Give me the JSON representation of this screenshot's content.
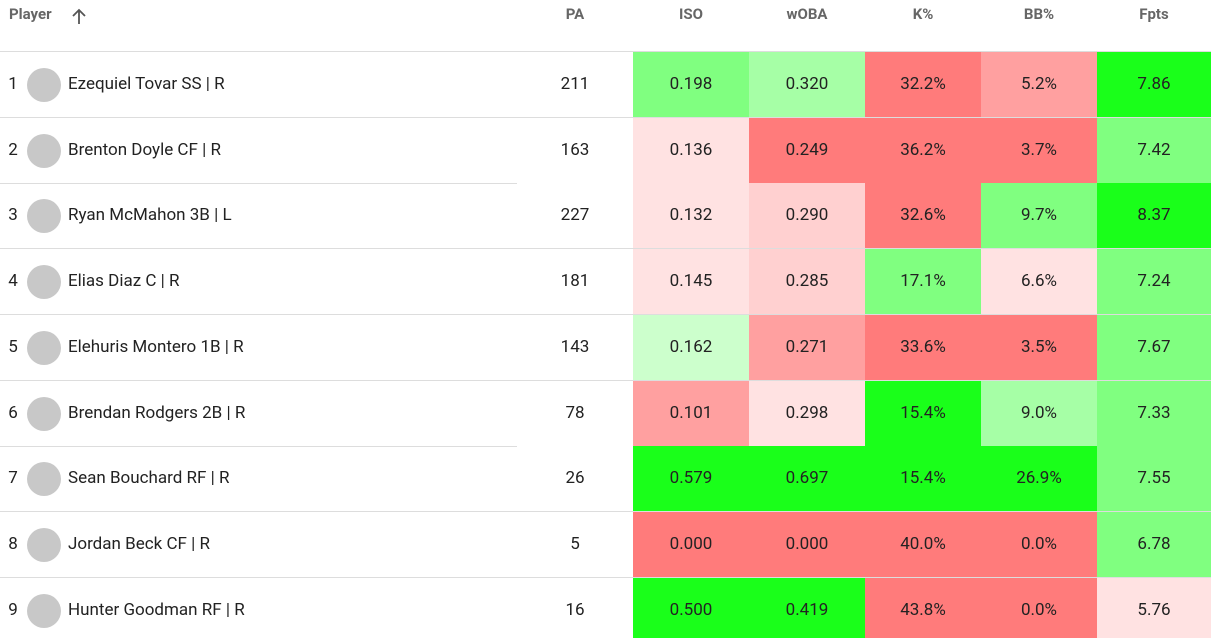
{
  "table": {
    "headers": [
      "Player",
      "PA",
      "ISO",
      "wOBA",
      "K%",
      "BB%",
      "Fpts"
    ],
    "rows": [
      {
        "rank": "1",
        "player": "Ezequiel Tovar SS | R",
        "cells": [
          "211",
          "0.198",
          "0.320",
          "32.2%",
          "5.2%",
          "7.86"
        ],
        "fills": [
          "#ffffff",
          "#80ff80",
          "#a6ffa6",
          "#ff7b7b",
          "#ffa0a0",
          "#1aff1a"
        ]
      },
      {
        "rank": "2",
        "player": "Brenton Doyle CF | R",
        "cells": [
          "163",
          "0.136",
          "0.249",
          "36.2%",
          "3.7%",
          "7.42"
        ],
        "fills": [
          "#ffffff",
          "#ffe2e2",
          "#ff7b7b",
          "#ff7b7b",
          "#ff7b7b",
          "#80ff80"
        ]
      },
      {
        "rank": "3",
        "player": "Ryan McMahon 3B | L",
        "cells": [
          "227",
          "0.132",
          "0.290",
          "32.6%",
          "9.7%",
          "8.37"
        ],
        "fills": [
          "#ffffff",
          "#ffe2e2",
          "#ffd0d0",
          "#ff7b7b",
          "#80ff80",
          "#1aff1a"
        ]
      },
      {
        "rank": "4",
        "player": "Elias Diaz C | R",
        "cells": [
          "181",
          "0.145",
          "0.285",
          "17.1%",
          "6.6%",
          "7.24"
        ],
        "fills": [
          "#ffffff",
          "#ffe2e2",
          "#ffd0d0",
          "#80ff80",
          "#ffe2e2",
          "#80ff80"
        ]
      },
      {
        "rank": "5",
        "player": "Elehuris Montero 1B | R",
        "cells": [
          "143",
          "0.162",
          "0.271",
          "33.6%",
          "3.5%",
          "7.67"
        ],
        "fills": [
          "#ffffff",
          "#ccffcc",
          "#ffa0a0",
          "#ff7b7b",
          "#ff7b7b",
          "#80ff80"
        ]
      },
      {
        "rank": "6",
        "player": "Brendan Rodgers 2B | R",
        "cells": [
          "78",
          "0.101",
          "0.298",
          "15.4%",
          "9.0%",
          "7.33"
        ],
        "fills": [
          "#ffffff",
          "#ffa0a0",
          "#ffe2e2",
          "#1aff1a",
          "#a6ffa6",
          "#80ff80"
        ]
      },
      {
        "rank": "7",
        "player": "Sean Bouchard RF | R",
        "cells": [
          "26",
          "0.579",
          "0.697",
          "15.4%",
          "26.9%",
          "7.55"
        ],
        "fills": [
          "#ffffff",
          "#1aff1a",
          "#1aff1a",
          "#1aff1a",
          "#1aff1a",
          "#80ff80"
        ]
      },
      {
        "rank": "8",
        "player": "Jordan Beck CF | R",
        "cells": [
          "5",
          "0.000",
          "0.000",
          "40.0%",
          "0.0%",
          "6.78"
        ],
        "fills": [
          "#ffffff",
          "#ff7b7b",
          "#ff7b7b",
          "#ff7b7b",
          "#ff7b7b",
          "#80ff80"
        ]
      },
      {
        "rank": "9",
        "player": "Hunter Goodman RF | R",
        "cells": [
          "16",
          "0.500",
          "0.419",
          "43.8%",
          "0.0%",
          "5.76"
        ],
        "fills": [
          "#ffffff",
          "#1aff1a",
          "#1aff1a",
          "#ff7b7b",
          "#ff7b7b",
          "#ffe2e2"
        ]
      }
    ]
  }
}
